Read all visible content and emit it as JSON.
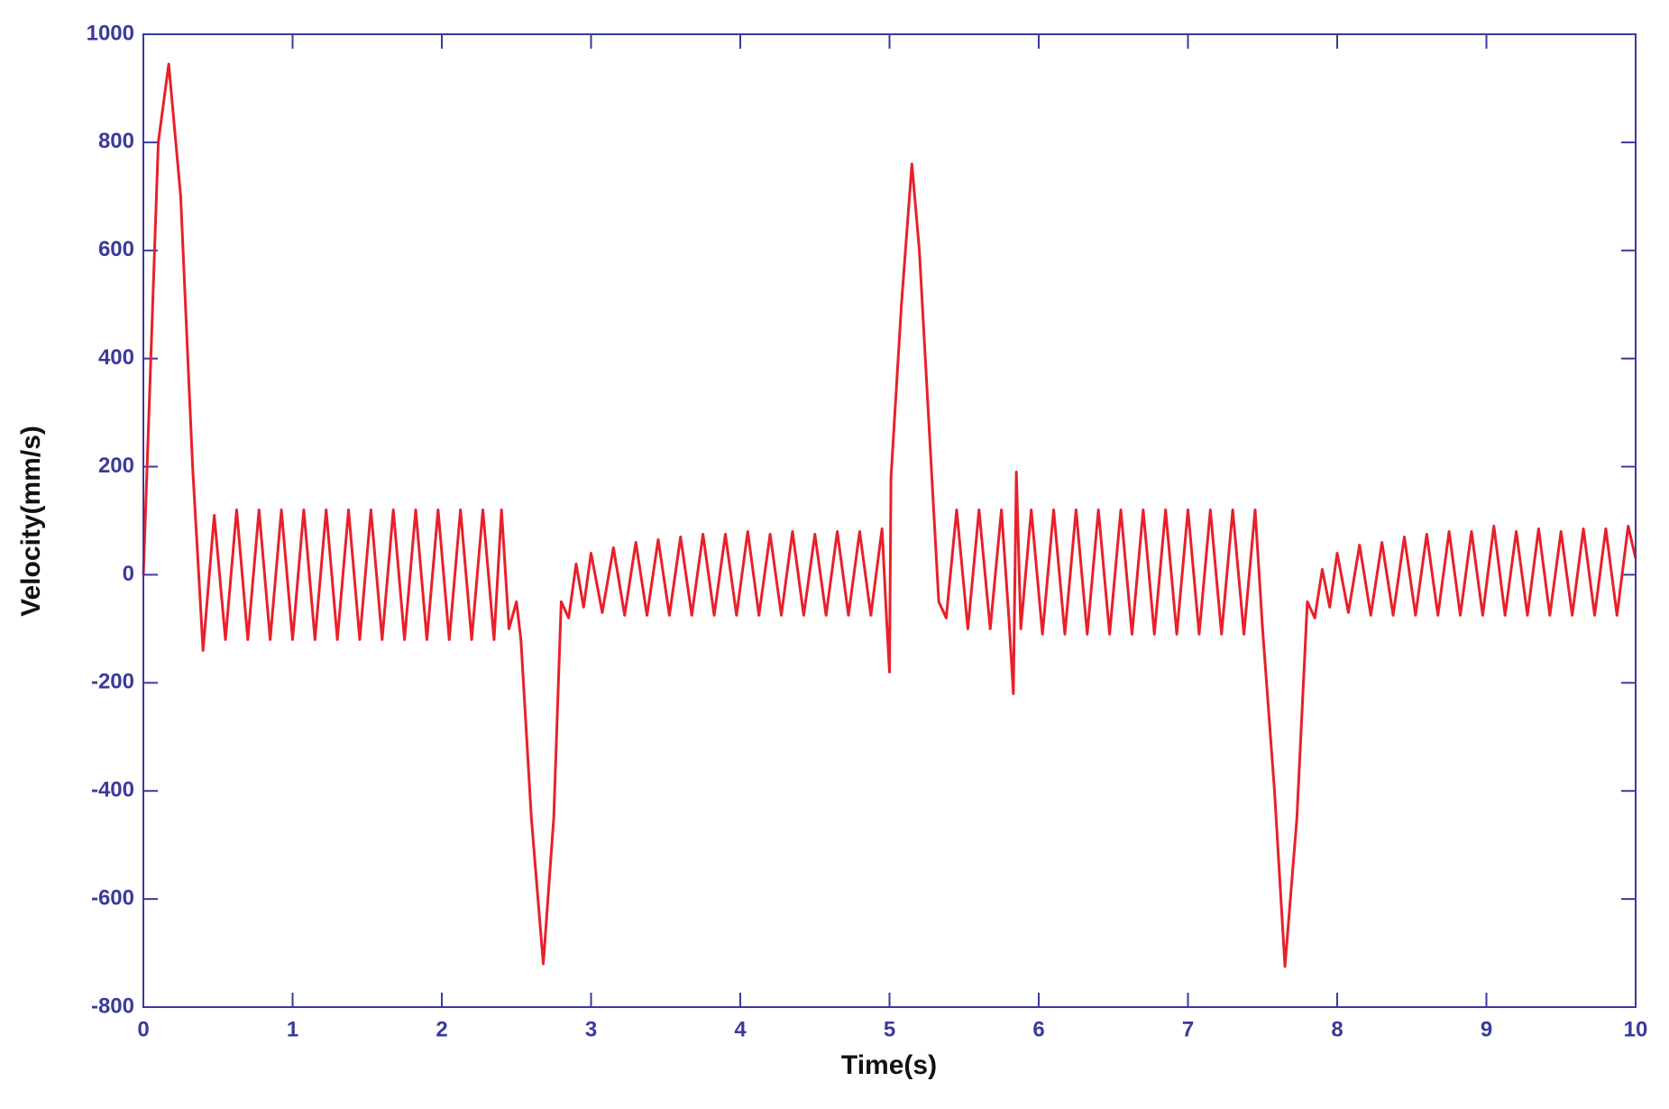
{
  "chart_data": {
    "type": "line",
    "xlabel": "Time(s)",
    "ylabel": "Velocity(mm/s)",
    "xlim": [
      0,
      10
    ],
    "ylim": [
      -800,
      1000
    ],
    "xticks": [
      0,
      1,
      2,
      3,
      4,
      5,
      6,
      7,
      8,
      9,
      10
    ],
    "yticks": [
      -800,
      -600,
      -400,
      -200,
      0,
      200,
      400,
      600,
      800,
      1000
    ],
    "series": [
      {
        "color": "#e8202a",
        "x": [
          0,
          0.05,
          0.1,
          0.17,
          0.25,
          0.33,
          0.4,
          0.475,
          0.55,
          0.625,
          0.7,
          0.775,
          0.85,
          0.925,
          1.0,
          1.075,
          1.15,
          1.225,
          1.3,
          1.375,
          1.45,
          1.525,
          1.6,
          1.675,
          1.75,
          1.825,
          1.9,
          1.975,
          2.05,
          2.125,
          2.2,
          2.275,
          2.35,
          2.4,
          2.45,
          2.5,
          2.53,
          2.6,
          2.68,
          2.75,
          2.8,
          2.85,
          2.9,
          2.95,
          3.0,
          3.075,
          3.15,
          3.225,
          3.3,
          3.375,
          3.45,
          3.525,
          3.6,
          3.675,
          3.75,
          3.825,
          3.9,
          3.975,
          4.05,
          4.125,
          4.2,
          4.275,
          4.35,
          4.425,
          4.5,
          4.575,
          4.65,
          4.725,
          4.8,
          4.875,
          4.95,
          4.98,
          5.0,
          5.01,
          5.08,
          5.15,
          5.2,
          5.28,
          5.33,
          5.38,
          5.45,
          5.525,
          5.6,
          5.675,
          5.75,
          5.8,
          5.83,
          5.85,
          5.88,
          5.95,
          6.025,
          6.1,
          6.175,
          6.25,
          6.325,
          6.4,
          6.475,
          6.55,
          6.625,
          6.7,
          6.775,
          6.85,
          6.925,
          7.0,
          7.075,
          7.15,
          7.225,
          7.3,
          7.375,
          7.45,
          7.5,
          7.58,
          7.65,
          7.73,
          7.8,
          7.85,
          7.9,
          7.95,
          8.0,
          8.075,
          8.15,
          8.225,
          8.3,
          8.375,
          8.45,
          8.525,
          8.6,
          8.675,
          8.75,
          8.825,
          8.9,
          8.975,
          9.05,
          9.125,
          9.2,
          9.275,
          9.35,
          9.425,
          9.5,
          9.575,
          9.65,
          9.725,
          9.8,
          9.875,
          9.95,
          10.0
        ],
        "values": [
          0,
          400,
          800,
          945,
          700,
          200,
          -140,
          110,
          -120,
          120,
          -120,
          120,
          -120,
          120,
          -120,
          120,
          -120,
          120,
          -120,
          120,
          -120,
          120,
          -120,
          120,
          -120,
          120,
          -120,
          120,
          -120,
          120,
          -120,
          120,
          -120,
          120,
          -100,
          -50,
          -120,
          -450,
          -720,
          -450,
          -50,
          -80,
          20,
          -60,
          40,
          -70,
          50,
          -75,
          60,
          -75,
          65,
          -75,
          70,
          -75,
          75,
          -75,
          75,
          -75,
          80,
          -75,
          75,
          -75,
          80,
          -75,
          75,
          -75,
          80,
          -75,
          80,
          -75,
          85,
          -80,
          -180,
          180,
          500,
          760,
          600,
          200,
          -50,
          -80,
          120,
          -100,
          120,
          -100,
          120,
          -80,
          -220,
          190,
          -100,
          120,
          -110,
          120,
          -110,
          120,
          -110,
          120,
          -110,
          120,
          -110,
          120,
          -110,
          120,
          -110,
          120,
          -110,
          120,
          -110,
          120,
          -110,
          120,
          -100,
          -400,
          -725,
          -450,
          -50,
          -80,
          10,
          -60,
          40,
          -70,
          55,
          -75,
          60,
          -75,
          70,
          -75,
          75,
          -75,
          80,
          -75,
          80,
          -75,
          90,
          -75,
          80,
          -75,
          85,
          -75,
          80,
          -75,
          85,
          -75,
          85,
          -75,
          90,
          30
        ]
      }
    ]
  }
}
